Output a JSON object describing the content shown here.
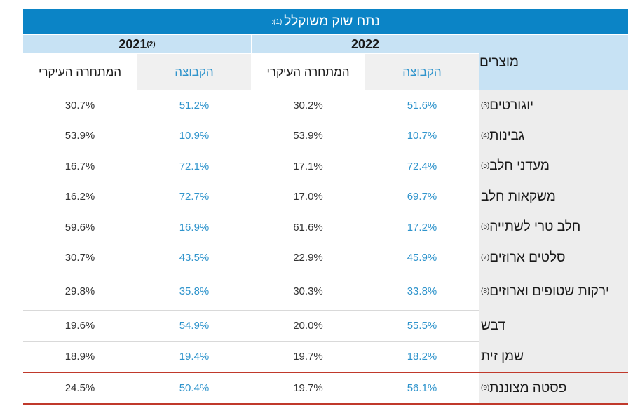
{
  "title": {
    "text": "נתח שוק משוקלל",
    "note": "(1):"
  },
  "years": [
    {
      "label": "2022",
      "note": ""
    },
    {
      "label": "2021",
      "note": "(2)"
    }
  ],
  "headers": {
    "products": "מוצרים",
    "group": "הקבוצה",
    "main_competitor": "המתחרה העיקרי"
  },
  "rows": [
    {
      "product": "יוגורטים",
      "note": "(3)",
      "g2022": "51.6%",
      "c2022": "30.2%",
      "g2021": "51.2%",
      "c2021": "30.7%"
    },
    {
      "product": "גבינות",
      "note": "(4)",
      "g2022": "10.7%",
      "c2022": "53.9%",
      "g2021": "10.9%",
      "c2021": "53.9%"
    },
    {
      "product": "מעדני חלב",
      "note": "(5)",
      "g2022": "72.4%",
      "c2022": "17.1%",
      "g2021": "72.1%",
      "c2021": "16.7%"
    },
    {
      "product": "משקאות חלב",
      "note": "",
      "g2022": "69.7%",
      "c2022": "17.0%",
      "g2021": "72.7%",
      "c2021": "16.2%"
    },
    {
      "product": "חלב טרי לשתייה",
      "note": "(6)",
      "g2022": "17.2%",
      "c2022": "61.6%",
      "g2021": "16.9%",
      "c2021": "59.6%"
    },
    {
      "product": "סלטים ארוזים",
      "note": "(7)",
      "g2022": "45.9%",
      "c2022": "22.9%",
      "g2021": "43.5%",
      "c2021": "30.7%"
    },
    {
      "product": "ירקות שטופים וארוזים",
      "note": "(8)",
      "g2022": "33.8%",
      "c2022": "30.3%",
      "g2021": "35.8%",
      "c2021": "29.8%"
    },
    {
      "product": "דבש",
      "note": "",
      "g2022": "55.5%",
      "c2022": "20.0%",
      "g2021": "54.9%",
      "c2021": "19.6%"
    },
    {
      "product": "שמן זית",
      "note": "",
      "g2022": "18.2%",
      "c2022": "19.7%",
      "g2021": "19.4%",
      "c2021": "18.9%"
    },
    {
      "product": "פסטה מצוננת",
      "note": "(9)",
      "g2022": "56.1%",
      "c2022": "19.7%",
      "g2021": "50.4%",
      "c2021": "24.5%"
    }
  ],
  "colors": {
    "title_bg": "#0b84c6",
    "header_bg": "#c7e2f4",
    "group_text": "#2f94cc",
    "highlight_border": "#c0392b"
  }
}
